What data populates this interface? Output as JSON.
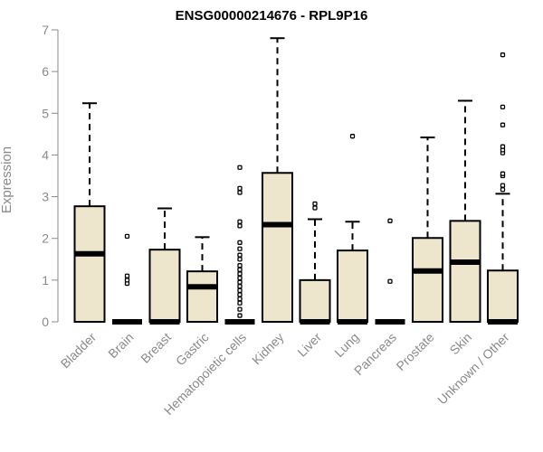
{
  "chart_data": {
    "type": "boxplot",
    "title": "ENSG00000214676 - RPL9P16",
    "xlabel": "",
    "ylabel": "Expression",
    "ylim": [
      0,
      7
    ],
    "yticks": [
      0,
      1,
      2,
      3,
      4,
      5,
      6,
      7
    ],
    "grid": false,
    "box_fill": "#ede6cc",
    "box_stroke": "#000000",
    "axis_color": "#8a8a8a",
    "categories": [
      "Bladder",
      "Brain",
      "Breast",
      "Gastric",
      "Hematopoietic cells",
      "Kidney",
      "Liver",
      "Lung",
      "Pancreas",
      "Prostate",
      "Skin",
      "Unknown / Other"
    ],
    "boxes": [
      {
        "q1": 0.0,
        "median": 1.63,
        "q3": 2.77,
        "whisker_low": 0.0,
        "whisker_high": 5.24,
        "outliers": []
      },
      {
        "q1": 0.0,
        "median": 0.0,
        "q3": 0.0,
        "whisker_low": 0.0,
        "whisker_high": 0.0,
        "outliers": [
          0.92,
          1.0,
          1.1,
          2.05
        ]
      },
      {
        "q1": 0.0,
        "median": 0.0,
        "q3": 1.73,
        "whisker_low": 0.0,
        "whisker_high": 2.72,
        "outliers": []
      },
      {
        "q1": 0.0,
        "median": 0.84,
        "q3": 1.21,
        "whisker_low": 0.0,
        "whisker_high": 2.03,
        "outliers": []
      },
      {
        "q1": 0.0,
        "median": 0.0,
        "q3": 0.0,
        "whisker_low": 0.0,
        "whisker_high": 0.0,
        "outliers": [
          0.15,
          0.3,
          0.45,
          0.55,
          0.65,
          0.75,
          0.85,
          0.95,
          1.05,
          1.15,
          1.25,
          1.35,
          1.5,
          1.6,
          1.75,
          1.9,
          2.3,
          2.4,
          3.1,
          3.2,
          3.7
        ]
      },
      {
        "q1": 0.0,
        "median": 2.33,
        "q3": 3.57,
        "whisker_low": 0.0,
        "whisker_high": 6.8,
        "outliers": []
      },
      {
        "q1": 0.0,
        "median": 0.0,
        "q3": 1.0,
        "whisker_low": 0.0,
        "whisker_high": 2.46,
        "outliers": [
          2.73,
          2.83
        ]
      },
      {
        "q1": 0.0,
        "median": 0.0,
        "q3": 1.71,
        "whisker_low": 0.0,
        "whisker_high": 2.4,
        "outliers": [
          4.45
        ]
      },
      {
        "q1": 0.0,
        "median": 0.0,
        "q3": 0.0,
        "whisker_low": 0.0,
        "whisker_high": 0.0,
        "outliers": [
          0.97,
          2.42
        ]
      },
      {
        "q1": 0.0,
        "median": 1.22,
        "q3": 2.01,
        "whisker_low": 0.0,
        "whisker_high": 4.42,
        "outliers": []
      },
      {
        "q1": 0.0,
        "median": 1.43,
        "q3": 2.42,
        "whisker_low": 0.0,
        "whisker_high": 5.3,
        "outliers": []
      },
      {
        "q1": 0.0,
        "median": 0.0,
        "q3": 1.23,
        "whisker_low": 0.0,
        "whisker_high": 3.07,
        "outliers": [
          3.17,
          3.27,
          3.5,
          3.55,
          4.05,
          4.12,
          4.2,
          4.72,
          5.15,
          6.4
        ]
      }
    ]
  }
}
